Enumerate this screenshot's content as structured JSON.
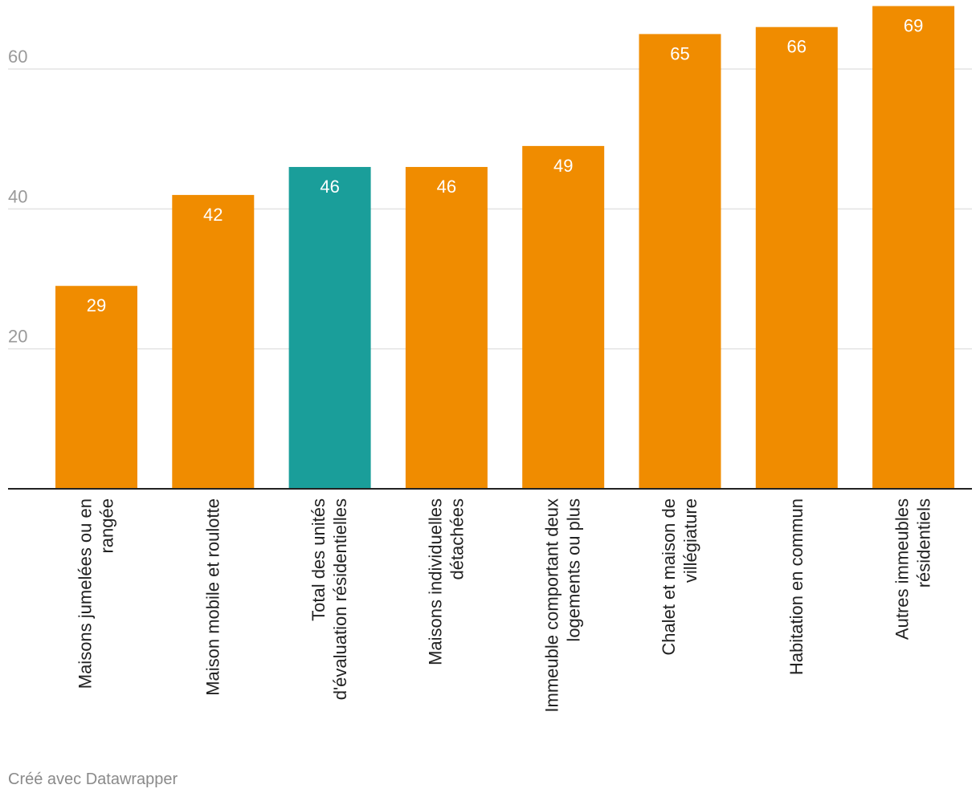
{
  "chart_data": {
    "type": "bar",
    "categories": [
      [
        "Maisons jumelées ou en",
        "rangée"
      ],
      [
        "Maison mobile et roulotte"
      ],
      [
        "Total des unités",
        "d'évaluation résidentielles"
      ],
      [
        "Maisons individuelles",
        "détachées"
      ],
      [
        "Immeuble comportant deux",
        "logements ou plus"
      ],
      [
        "Chalet et maison de",
        "villégiature"
      ],
      [
        "Habitation en commun"
      ],
      [
        "Autres immeubles",
        "résidentiels"
      ]
    ],
    "values": [
      29,
      42,
      46,
      46,
      49,
      65,
      66,
      69
    ],
    "value_labels": [
      "29",
      "42",
      "46",
      "46",
      "49",
      "65",
      "66",
      "69"
    ],
    "highlight_index": 2,
    "colors": {
      "default": "#f08c00",
      "highlight": "#1a9e9a"
    },
    "yticks": [
      20,
      40,
      60
    ],
    "ytick_labels": [
      "20",
      "40",
      "60"
    ],
    "ylim": [
      0,
      69
    ],
    "grid": true,
    "title": "",
    "xlabel": "",
    "ylabel": ""
  },
  "footer": {
    "credit": "Créé avec Datawrapper"
  }
}
